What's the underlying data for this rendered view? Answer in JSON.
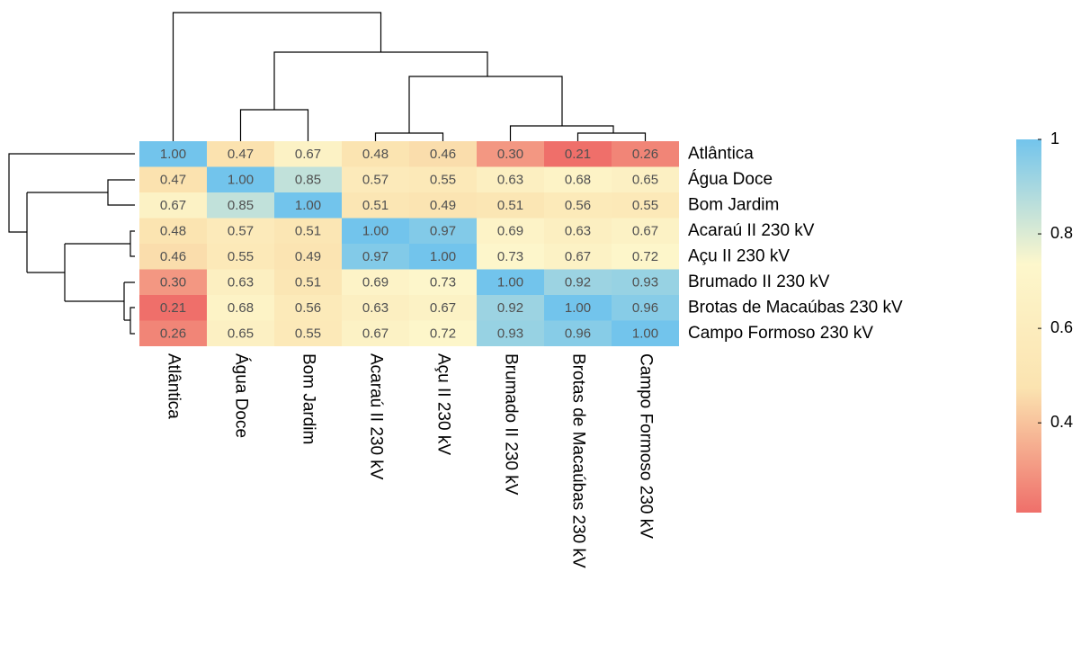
{
  "chart_data": {
    "type": "heatmap",
    "rows": [
      "Atlântica",
      "Água Doce",
      "Bom Jardim",
      "Acaraú II 230 kV",
      "Açu II 230 kV",
      "Brumado II 230 kV",
      "Brotas de Macaúbas 230 kV",
      "Campo Formoso 230 kV"
    ],
    "columns": [
      "Atlântica",
      "Água Doce",
      "Bom Jardim",
      "Acaraú II 230 kV",
      "Açu II 230 kV",
      "Brumado II 230 kV",
      "Brotas de Macaúbas 230 kV",
      "Campo Formoso 230 kV"
    ],
    "values": [
      [
        1,
        0.47,
        0.67,
        0.48,
        0.46,
        0.3,
        0.21,
        0.26
      ],
      [
        0.47,
        1,
        0.85,
        0.57,
        0.55,
        0.63,
        0.68,
        0.65
      ],
      [
        0.67,
        0.85,
        1,
        0.51,
        0.49,
        0.51,
        0.56,
        0.55
      ],
      [
        0.48,
        0.57,
        0.51,
        1,
        0.97,
        0.69,
        0.63,
        0.67
      ],
      [
        0.46,
        0.55,
        0.49,
        0.97,
        1,
        0.73,
        0.67,
        0.72
      ],
      [
        0.3,
        0.63,
        0.51,
        0.69,
        0.73,
        1,
        0.92,
        0.93
      ],
      [
        0.21,
        0.68,
        0.56,
        0.63,
        0.67,
        0.92,
        1,
        0.96
      ],
      [
        0.26,
        0.65,
        0.55,
        0.67,
        0.72,
        0.93,
        0.96,
        1
      ]
    ],
    "value_labels": [
      [
        "1.00",
        "0.47",
        "0.67",
        "0.48",
        "0.46",
        "0.30",
        "0.21",
        "0.26"
      ],
      [
        "0.47",
        "1.00",
        "0.85",
        "0.57",
        "0.55",
        "0.63",
        "0.68",
        "0.65"
      ],
      [
        "0.67",
        "0.85",
        "1.00",
        "0.51",
        "0.49",
        "0.51",
        "0.56",
        "0.55"
      ],
      [
        "0.48",
        "0.57",
        "0.51",
        "1.00",
        "0.97",
        "0.69",
        "0.63",
        "0.67"
      ],
      [
        "0.46",
        "0.55",
        "0.49",
        "0.97",
        "1.00",
        "0.73",
        "0.67",
        "0.72"
      ],
      [
        "0.30",
        "0.63",
        "0.51",
        "0.69",
        "0.73",
        "1.00",
        "0.92",
        "0.93"
      ],
      [
        "0.21",
        "0.68",
        "0.56",
        "0.63",
        "0.67",
        "0.92",
        "1.00",
        "0.96"
      ],
      [
        "0.26",
        "0.65",
        "0.55",
        "0.67",
        "0.72",
        "0.93",
        "0.96",
        "1.00"
      ]
    ],
    "zlim": [
      0.21,
      1
    ],
    "zticks": [
      0.4,
      0.6,
      0.8,
      1
    ],
    "colors": [
      "#ef6f6a",
      "#fbe3b0",
      "#fdf7cc",
      "#72c4ec"
    ]
  }
}
